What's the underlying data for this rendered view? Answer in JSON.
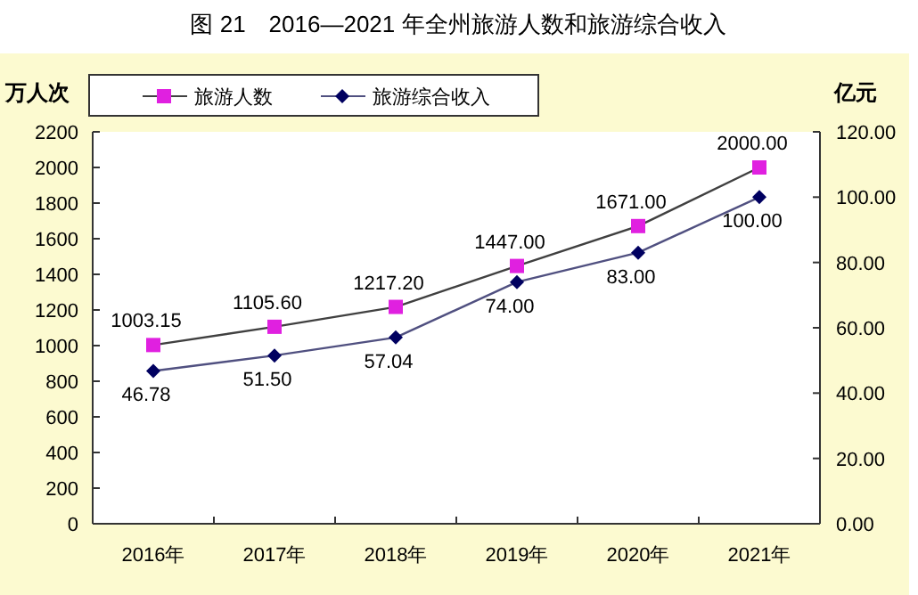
{
  "chart_data": {
    "type": "line",
    "title": "图 21　2016—2021 年全州旅游人数和旅游综合收入",
    "ylabel": "万人次",
    "y2label": "亿元",
    "categories": [
      "2016年",
      "2017年",
      "2018年",
      "2019年",
      "2020年",
      "2021年"
    ],
    "series": [
      {
        "name": "旅游人数",
        "color": "#e020e0",
        "marker": "square",
        "values": [
          1003.15,
          1105.6,
          1217.2,
          1447,
          1671,
          2000
        ],
        "value_labels": [
          "1003.15",
          "1105.60",
          "1217.20",
          "1447.00",
          "1671.00",
          "2000.00"
        ]
      },
      {
        "name": "旅游综合收入",
        "color": "#000060",
        "marker": "diamond",
        "axis": "y2",
        "values": [
          46.78,
          51.5,
          57.04,
          74,
          83,
          100
        ],
        "value_labels": [
          "46.78",
          "51.50",
          "57.04",
          "74.00",
          "83.00",
          "100.00"
        ]
      }
    ],
    "ylim": [
      0,
      2200
    ],
    "yticks": [
      0,
      200,
      400,
      600,
      800,
      1000,
      1200,
      1400,
      1600,
      1800,
      2000,
      2200
    ],
    "y2lim": [
      0,
      120
    ],
    "y2ticks": [
      {
        "value": 0,
        "label": "0.00"
      },
      {
        "value": 20,
        "label": "20.00"
      },
      {
        "value": 40,
        "label": "40.00"
      },
      {
        "value": 60,
        "label": "60.00"
      },
      {
        "value": 80,
        "label": "80.00"
      },
      {
        "value": 100,
        "label": "100.00"
      },
      {
        "value": 120,
        "label": "120.00"
      }
    ],
    "legend": "top",
    "grid": false
  }
}
